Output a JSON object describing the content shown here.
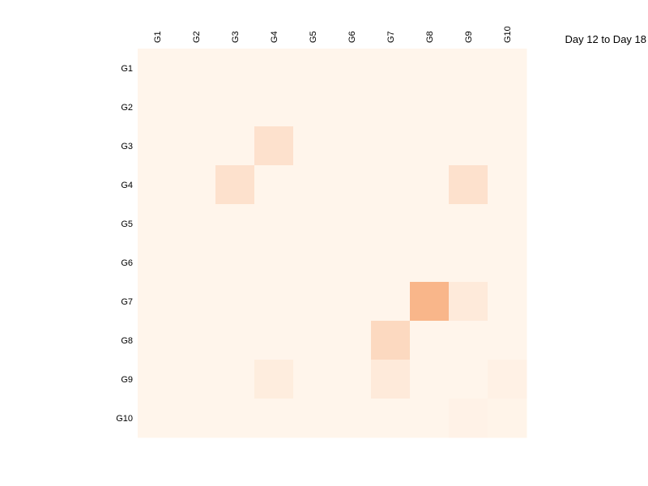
{
  "chart_data": {
    "type": "heatmap",
    "title": "Day 12 to Day 18",
    "xlabel": "",
    "ylabel": "",
    "x_categories": [
      "G1",
      "G2",
      "G3",
      "G4",
      "G5",
      "G6",
      "G7",
      "G8",
      "G9",
      "G10"
    ],
    "y_categories": [
      "G1",
      "G2",
      "G3",
      "G4",
      "G5",
      "G6",
      "G7",
      "G8",
      "G9",
      "G10"
    ],
    "x_axis_position": "top",
    "legend": "none",
    "grid": false,
    "value_range": [
      0,
      1
    ],
    "colormap": {
      "low": "#fff5eb",
      "high": "#f16913"
    },
    "values": [
      [
        0,
        0,
        0,
        0,
        0,
        0,
        0,
        0,
        0,
        0
      ],
      [
        0,
        0,
        0,
        0,
        0,
        0,
        0,
        0,
        0,
        0
      ],
      [
        0,
        0,
        0,
        0.14,
        0,
        0,
        0,
        0,
        0,
        0
      ],
      [
        0,
        0,
        0.14,
        0,
        0,
        0,
        0,
        0,
        0.14,
        0
      ],
      [
        0,
        0,
        0,
        0,
        0,
        0,
        0,
        0,
        0,
        0
      ],
      [
        0,
        0,
        0,
        0,
        0,
        0,
        0,
        0,
        0,
        0
      ],
      [
        0,
        0,
        0,
        0,
        0,
        0,
        0,
        0.45,
        0.08,
        0
      ],
      [
        0,
        0,
        0,
        0,
        0,
        0,
        0.2,
        0,
        0,
        0
      ],
      [
        0,
        0,
        0,
        0.06,
        0,
        0,
        0.08,
        0,
        0,
        0.03
      ],
      [
        0,
        0,
        0,
        0,
        0,
        0,
        0,
        0,
        0.02,
        0.01
      ]
    ]
  }
}
